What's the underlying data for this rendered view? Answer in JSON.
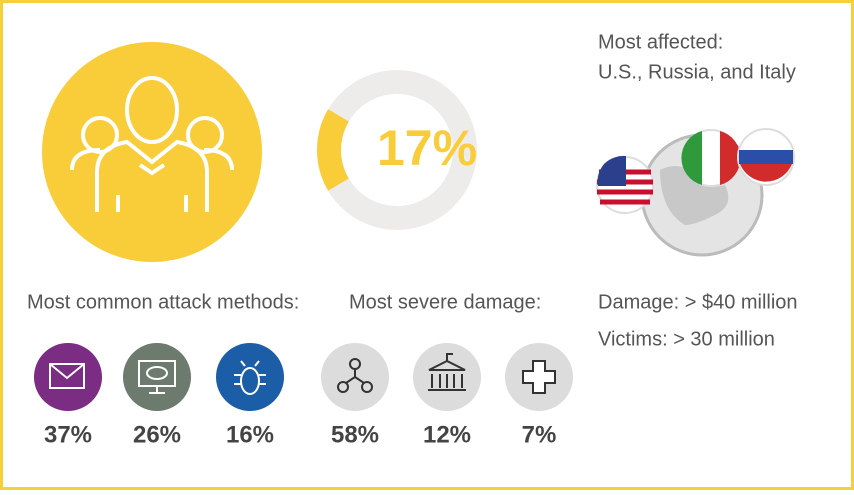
{
  "donut": {
    "value": 17,
    "label": "17%"
  },
  "affected": {
    "title": "Most affected:",
    "countries": "U.S., Russia, and Italy"
  },
  "methods": {
    "title": "Most common attack methods:",
    "items": [
      "37%",
      "26%",
      "16%"
    ]
  },
  "damage": {
    "title": "Most severe damage:",
    "items": [
      "58%",
      "12%",
      "7%"
    ]
  },
  "stats": {
    "damage": "Damage: > $40 million",
    "victims": "Victims: > 30 million"
  }
}
